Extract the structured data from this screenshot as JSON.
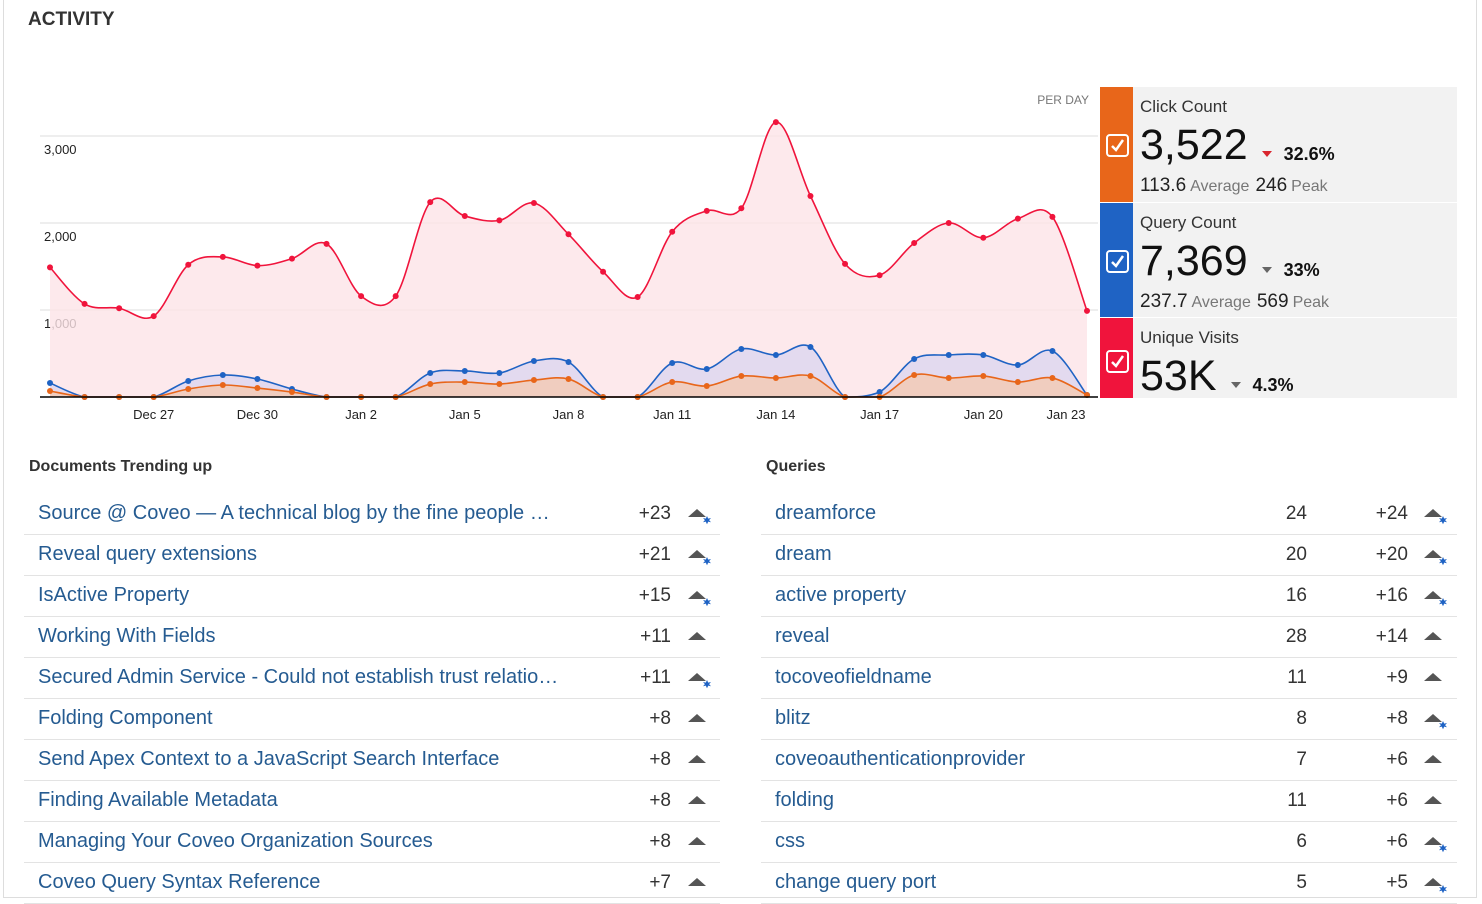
{
  "header": {
    "title": "ACTIVITY"
  },
  "chart_data": {
    "type": "line",
    "annotation": "PER DAY",
    "categories": [
      null,
      null,
      null,
      "Dec 27",
      null,
      null,
      "Dec 30",
      null,
      null,
      "Jan 2",
      null,
      null,
      "Jan 5",
      null,
      null,
      "Jan 8",
      null,
      null,
      "Jan 11",
      null,
      null,
      "Jan 14",
      null,
      null,
      "Jan 17",
      null,
      null,
      "Jan 20",
      null,
      null,
      "Jan 23"
    ],
    "series": [
      {
        "name": "Click Count",
        "color": "#e8661a",
        "fill": "#f3c9b3",
        "values": [
          69,
          0,
          0,
          0,
          92,
          138,
          103,
          57,
          0,
          0,
          0,
          149,
          172,
          149,
          195,
          207,
          0,
          0,
          172,
          126,
          241,
          218,
          241,
          0,
          0,
          253,
          218,
          241,
          172,
          218,
          23
        ]
      },
      {
        "name": "Query Count",
        "color": "#1f63c4",
        "fill": "#dcd6f0",
        "values": [
          161,
          0,
          0,
          0,
          184,
          253,
          207,
          92,
          0,
          0,
          0,
          276,
          299,
          276,
          414,
          402,
          0,
          0,
          391,
          322,
          552,
          483,
          575,
          0,
          57,
          437,
          483,
          483,
          368,
          529,
          23
        ]
      },
      {
        "name": "Unique Visits",
        "color": "#f0143c",
        "fill": "#fde3e7",
        "values": [
          1490,
          1070,
          1020,
          930,
          1520,
          1610,
          1510,
          1590,
          1760,
          1160,
          1160,
          2240,
          2080,
          2030,
          2230,
          1870,
          1440,
          1150,
          1900,
          2140,
          2170,
          3160,
          2310,
          1530,
          1400,
          1770,
          2000,
          1830,
          2050,
          2070,
          990
        ]
      }
    ],
    "ylim": [
      0,
      3500
    ],
    "yticks": [
      {
        "value": 1000,
        "label": "1,000"
      },
      {
        "value": 2000,
        "label": "2,000"
      },
      {
        "value": 3000,
        "label": "3,000"
      }
    ],
    "grid": true
  },
  "metrics": [
    {
      "value": "3,522",
      "change": "32.6%",
      "average": "113.6",
      "peak": "246"
    },
    {
      "value": "7,369",
      "change": "33%",
      "average": "237.7",
      "peak": "569"
    },
    {
      "value": "53K",
      "change": "4.3%"
    }
  ],
  "metric_labels": {
    "average": "Average",
    "peak": "Peak"
  },
  "documents": {
    "title": "Documents Trending up",
    "rows": [
      {
        "title": "Source @ Coveo — A technical blog by the fine people …",
        "change": "+23",
        "starred": true
      },
      {
        "title": "Reveal query extensions",
        "change": "+21",
        "starred": true
      },
      {
        "title": "IsActive Property",
        "change": "+15",
        "starred": true
      },
      {
        "title": "Working With Fields",
        "change": "+11",
        "starred": false
      },
      {
        "title": "Secured Admin Service - Could not establish trust relatio…",
        "change": "+11",
        "starred": true
      },
      {
        "title": "Folding Component",
        "change": "+8",
        "starred": false
      },
      {
        "title": "Send Apex Context to a JavaScript Search Interface",
        "change": "+8",
        "starred": false
      },
      {
        "title": "Finding Available Metadata",
        "change": "+8",
        "starred": false
      },
      {
        "title": "Managing Your Coveo Organization Sources",
        "change": "+8",
        "starred": false
      },
      {
        "title": "Coveo Query Syntax Reference",
        "change": "+7",
        "starred": false
      }
    ]
  },
  "queries": {
    "title": "Queries",
    "rows": [
      {
        "query": "dreamforce",
        "count": "24",
        "change": "+24",
        "starred": true
      },
      {
        "query": "dream",
        "count": "20",
        "change": "+20",
        "starred": true
      },
      {
        "query": "active property",
        "count": "16",
        "change": "+16",
        "starred": true
      },
      {
        "query": "reveal",
        "count": "28",
        "change": "+14",
        "starred": false
      },
      {
        "query": "tocoveofieldname",
        "count": "11",
        "change": "+9",
        "starred": false
      },
      {
        "query": "blitz",
        "count": "8",
        "change": "+8",
        "starred": true
      },
      {
        "query": "coveoauthenticationprovider",
        "count": "7",
        "change": "+6",
        "starred": false
      },
      {
        "query": "folding",
        "count": "11",
        "change": "+6",
        "starred": false
      },
      {
        "query": "css",
        "count": "6",
        "change": "+6",
        "starred": true
      },
      {
        "query": "change query port",
        "count": "5",
        "change": "+5",
        "starred": true
      }
    ]
  }
}
